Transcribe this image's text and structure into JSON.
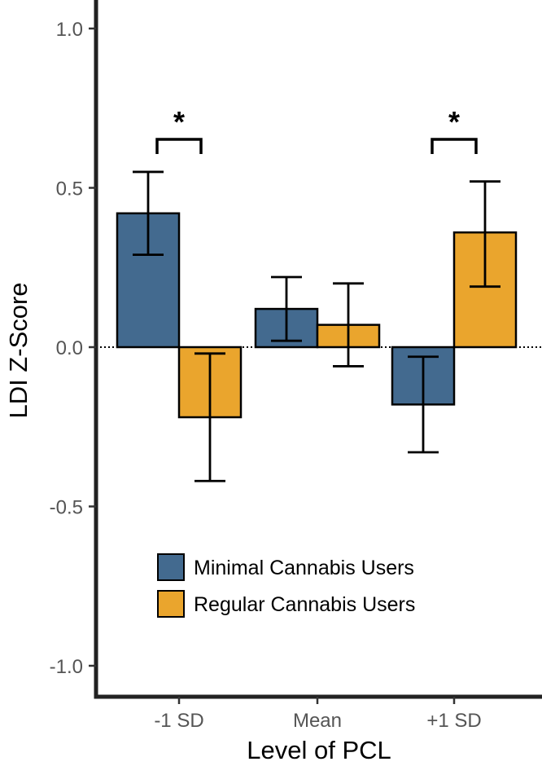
{
  "chart_data": {
    "type": "bar",
    "xlabel": "Level of PCL",
    "ylabel": "LDI Z-Score",
    "ylim": [
      -1.1,
      1.08
    ],
    "yticks": [
      -1.0,
      -0.5,
      0.0,
      0.5,
      1.0
    ],
    "ytick_labels": [
      "-1.0",
      "-0.5",
      "0.0",
      "0.5",
      "1.0"
    ],
    "categories": [
      "-1 SD",
      "Mean",
      "+1 SD"
    ],
    "series": [
      {
        "name": "Minimal Cannabis Users",
        "color": "#436a8f",
        "values": [
          0.42,
          0.12,
          -0.18
        ],
        "error_low": [
          0.29,
          0.02,
          -0.33
        ],
        "error_high": [
          0.55,
          0.22,
          -0.03
        ]
      },
      {
        "name": "Regular Cannabis Users",
        "color": "#eaa52d",
        "values": [
          -0.22,
          0.07,
          0.36
        ],
        "error_low": [
          -0.42,
          -0.06,
          0.19
        ],
        "error_high": [
          -0.02,
          0.2,
          0.52
        ]
      }
    ],
    "reference_line": {
      "y": 0.0,
      "style": "dotted"
    },
    "significance": [
      {
        "category": "-1 SD",
        "label": "*"
      },
      {
        "category": "+1 SD",
        "label": "*"
      }
    ],
    "legend": {
      "position": "bottom-right",
      "entries": [
        "Minimal Cannabis Users",
        "Regular Cannabis Users"
      ]
    },
    "grid": false
  }
}
